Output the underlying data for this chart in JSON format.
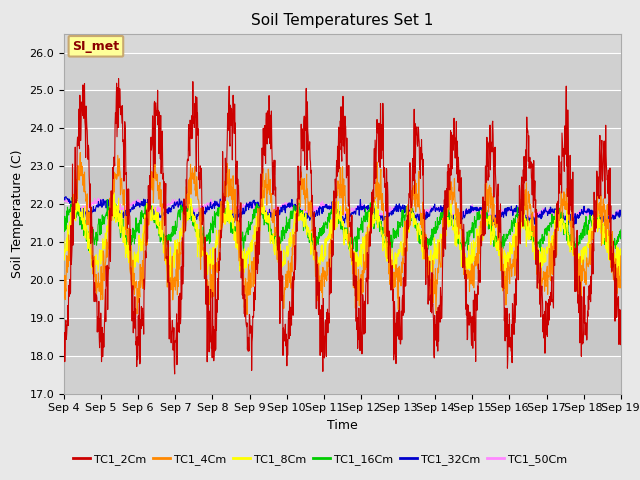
{
  "title": "Soil Temperatures Set 1",
  "xlabel": "Time",
  "ylabel": "Soil Temperature (C)",
  "ylim": [
    17.0,
    26.5
  ],
  "yticks": [
    17.0,
    18.0,
    19.0,
    20.0,
    21.0,
    22.0,
    23.0,
    24.0,
    25.0,
    26.0
  ],
  "xtick_labels": [
    "Sep 4",
    "Sep 5",
    "Sep 6",
    "Sep 7",
    "Sep 8",
    "Sep 9",
    "Sep 10",
    "Sep 11",
    "Sep 12",
    "Sep 13",
    "Sep 14",
    "Sep 15",
    "Sep 16",
    "Sep 17",
    "Sep 18",
    "Sep 19"
  ],
  "series_colors": [
    "#cc0000",
    "#ff8800",
    "#ffff00",
    "#00cc00",
    "#0000cc",
    "#ff88ff"
  ],
  "series_names": [
    "TC1_2Cm",
    "TC1_4Cm",
    "TC1_8Cm",
    "TC1_16Cm",
    "TC1_32Cm",
    "TC1_50Cm"
  ],
  "fig_bg_color": "#e8e8e8",
  "plot_bg_color": "#d8d8d8",
  "band_colors": [
    "#d0d0d0",
    "#c8c8c8"
  ],
  "annotation_text": "SI_met",
  "annotation_fg": "#8b0000",
  "annotation_bg": "#ffff99",
  "annotation_border": "#c8a870",
  "grid_color": "#ffffff",
  "title_fontsize": 11,
  "axis_fontsize": 9,
  "tick_fontsize": 8,
  "legend_fontsize": 8
}
